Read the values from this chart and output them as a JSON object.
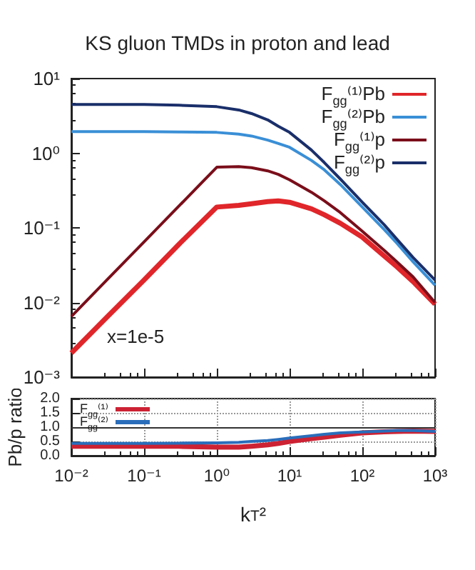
{
  "chart_data": [
    {
      "type": "line",
      "title": "KS gluon TMDs in proton and lead",
      "log": "xy",
      "tick_labels": "y",
      "legend": "top right",
      "grid": false,
      "x": [
        0.01,
        0.03,
        0.1,
        0.3,
        1,
        2,
        3,
        5,
        7,
        10,
        20,
        30,
        50,
        100,
        200,
        300,
        500,
        1000
      ],
      "xlim": [
        0.01,
        1000
      ],
      "ylim": [
        0.001,
        10
      ],
      "yticks": [
        {
          "value": 0.001,
          "label": "10⁻³"
        },
        {
          "value": 0.01,
          "label": "10⁻²"
        },
        {
          "value": 0.1,
          "label": "10⁻¹"
        },
        {
          "value": 1,
          "label": "10⁰"
        },
        {
          "value": 10,
          "label": "10¹"
        }
      ],
      "annotations": [
        "x=1e-5"
      ],
      "series": [
        {
          "name": "F$_{gg}$⁽¹⁾Pb",
          "color": "#e0262a",
          "values": [
            0.0021,
            0.0062,
            0.02,
            0.06,
            0.19,
            0.2,
            0.21,
            0.225,
            0.23,
            0.22,
            0.18,
            0.15,
            0.115,
            0.075,
            0.042,
            0.03,
            0.019,
            0.0095
          ]
        },
        {
          "name": "F$_{gg}$⁽²⁾Pb",
          "color": "#3a8fd6",
          "values": [
            1.95,
            1.95,
            1.95,
            1.93,
            1.9,
            1.8,
            1.7,
            1.5,
            1.35,
            1.2,
            0.8,
            0.6,
            0.38,
            0.19,
            0.095,
            0.062,
            0.035,
            0.017
          ]
        },
        {
          "name": "F$_{gg}$⁽¹⁾p",
          "color": "#7a0e1a",
          "values": [
            0.0065,
            0.0195,
            0.065,
            0.195,
            0.65,
            0.66,
            0.64,
            0.58,
            0.52,
            0.44,
            0.3,
            0.23,
            0.16,
            0.09,
            0.05,
            0.035,
            0.022,
            0.01
          ]
        },
        {
          "name": "F$_{gg}$⁽²⁾p",
          "color": "#1a2f6a",
          "values": [
            4.5,
            4.5,
            4.5,
            4.4,
            4.2,
            3.8,
            3.4,
            2.8,
            2.3,
            1.9,
            1.1,
            0.75,
            0.45,
            0.22,
            0.11,
            0.07,
            0.04,
            0.02
          ]
        }
      ]
    },
    {
      "type": "line",
      "log": "x",
      "legend": "top left",
      "grid": true,
      "xlabel": "k$_{T}$²",
      "ylabel": "Pb/p ratio",
      "x": [
        0.01,
        0.03,
        0.1,
        0.3,
        1,
        2,
        3,
        5,
        7,
        10,
        20,
        30,
        50,
        100,
        200,
        300,
        500,
        1000
      ],
      "xlim": [
        0.01,
        1000
      ],
      "xticks": [
        {
          "value": 0.01,
          "label": "10⁻²"
        },
        {
          "value": 0.1,
          "label": "10⁻¹"
        },
        {
          "value": 1,
          "label": "10⁰"
        },
        {
          "value": 10,
          "label": "10¹"
        },
        {
          "value": 100,
          "label": "10²"
        },
        {
          "value": 1000,
          "label": "10³"
        }
      ],
      "ylim": [
        0,
        2
      ],
      "yticks": [
        {
          "value": 0,
          "label": "0.0"
        },
        {
          "value": 0.5,
          "label": "0.5"
        },
        {
          "value": 1,
          "label": "1.0"
        },
        {
          "value": 1.5,
          "label": "1.5"
        },
        {
          "value": 2,
          "label": "2.0"
        }
      ],
      "ref_lines": [
        {
          "axis": "y",
          "value": 1,
          "label": null,
          "color": "#333333"
        }
      ],
      "series": [
        {
          "name": "F$_{gg}$⁽¹⁾",
          "color": "#cc2233",
          "values": [
            0.33,
            0.33,
            0.33,
            0.33,
            0.3,
            0.3,
            0.33,
            0.38,
            0.43,
            0.5,
            0.6,
            0.65,
            0.72,
            0.8,
            0.84,
            0.85,
            0.86,
            0.85
          ]
        },
        {
          "name": "F$_{gg}$⁽²⁾",
          "color": "#2a6ebb",
          "values": [
            0.43,
            0.43,
            0.43,
            0.44,
            0.45,
            0.47,
            0.5,
            0.53,
            0.57,
            0.62,
            0.7,
            0.75,
            0.8,
            0.83,
            0.86,
            0.88,
            0.88,
            0.85
          ]
        }
      ]
    }
  ]
}
